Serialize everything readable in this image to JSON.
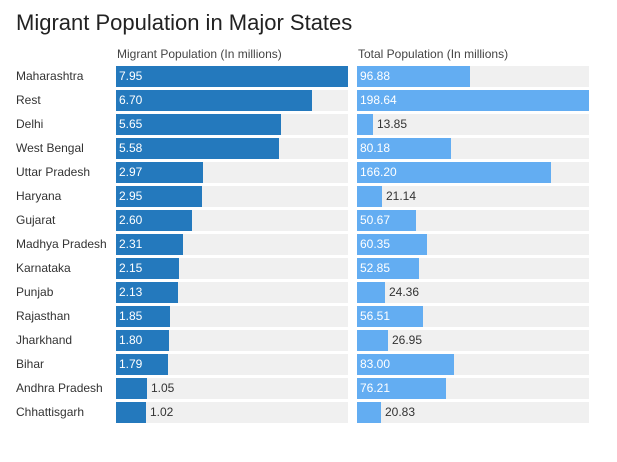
{
  "chart_data": {
    "type": "bar",
    "title": "Migrant Population in Major States",
    "orientation": "horizontal",
    "categories": [
      "Maharashtra",
      "Rest",
      "Delhi",
      "West Bengal",
      "Uttar Pradesh",
      "Haryana",
      "Gujarat",
      "Madhya Pradesh",
      "Karnataka",
      "Punjab",
      "Rajasthan",
      "Jharkhand",
      "Bihar",
      "Andhra Pradesh",
      "Chhattisgarh"
    ],
    "series": [
      {
        "name": "Migrant Population (In millions)",
        "color": "#2479bd",
        "max": 7.95,
        "values": [
          7.95,
          6.7,
          5.65,
          5.58,
          2.97,
          2.95,
          2.6,
          2.31,
          2.15,
          2.13,
          1.85,
          1.8,
          1.79,
          1.05,
          1.02
        ],
        "labels": [
          "7.95",
          "6.70",
          "5.65",
          "5.58",
          "2.97",
          "2.95",
          "2.60",
          "2.31",
          "2.15",
          "2.13",
          "1.85",
          "1.80",
          "1.79",
          "1.05",
          "1.02"
        ]
      },
      {
        "name": "Total Population (In millions)",
        "color": "#63adf2",
        "max": 198.64,
        "values": [
          96.88,
          198.64,
          13.85,
          80.18,
          166.2,
          21.14,
          50.67,
          60.35,
          52.85,
          24.36,
          56.51,
          26.95,
          83.0,
          76.21,
          20.83
        ],
        "labels": [
          "96.88",
          "198.64",
          "13.85",
          "80.18",
          "166.20",
          "21.14",
          "50.67",
          "60.35",
          "52.85",
          "24.36",
          "56.51",
          "26.95",
          "83.00",
          "76.21",
          "20.83"
        ]
      }
    ]
  }
}
